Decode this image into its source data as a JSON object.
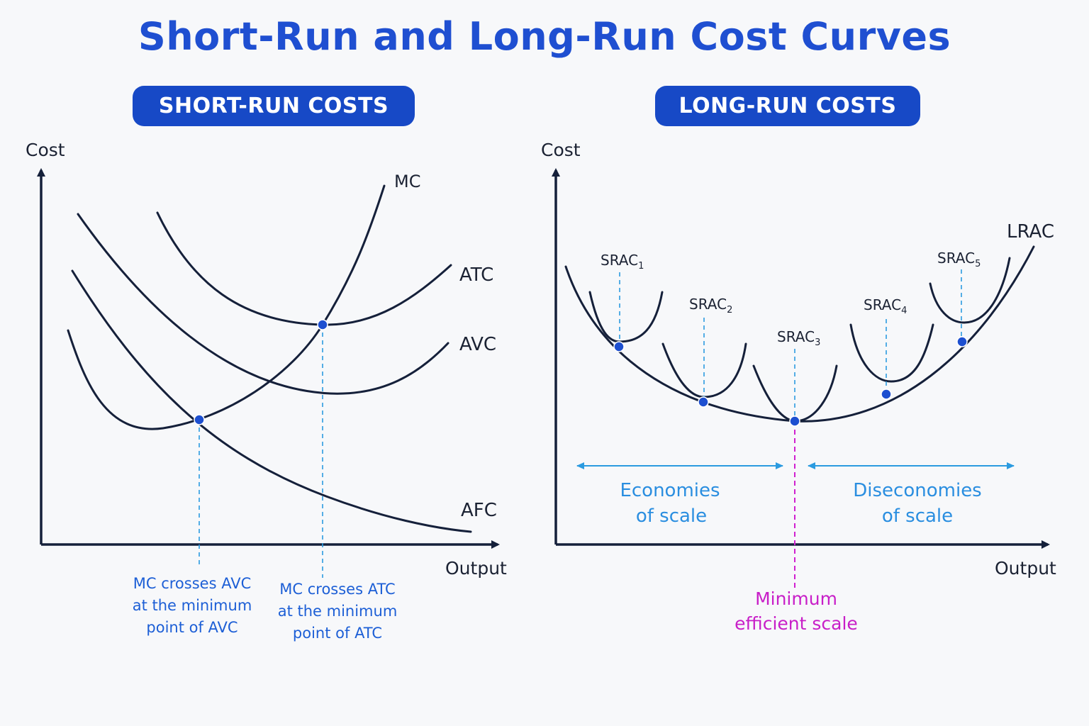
{
  "title": "Short-Run and Long-Run Cost Curves",
  "short_run": {
    "header": "SHORT-RUN COSTS",
    "y_axis_label": "Cost",
    "x_axis_label": "Output",
    "curves": {
      "mc": "MC",
      "atc": "ATC",
      "avc": "AVC",
      "afc": "AFC"
    },
    "note_avc": [
      "MC crosses AVC",
      "at the minimum",
      "point of AVC"
    ],
    "note_atc": [
      "MC crosses ATC",
      "at the minimum",
      "point of ATC"
    ]
  },
  "long_run": {
    "header": "LONG-RUN COSTS",
    "y_axis_label": "Cost",
    "x_axis_label": "Output",
    "lrac_label": "LRAC",
    "srac": [
      {
        "base": "SRAC",
        "sub": "1"
      },
      {
        "base": "SRAC",
        "sub": "2"
      },
      {
        "base": "SRAC",
        "sub": "3"
      },
      {
        "base": "SRAC",
        "sub": "4"
      },
      {
        "base": "SRAC",
        "sub": "5"
      }
    ],
    "economies": [
      "Economies",
      "of scale"
    ],
    "diseconomies": [
      "Diseconomies",
      "of scale"
    ],
    "min_efficient_scale": [
      "Minimum",
      "efficient scale"
    ]
  },
  "colors": {
    "title": "#1f4fd1",
    "header_bg": "#1749c6",
    "curve": "#15203a",
    "guide": "#2b9be0",
    "mes": "#c81fc8",
    "dot": "#1d4fd0"
  }
}
